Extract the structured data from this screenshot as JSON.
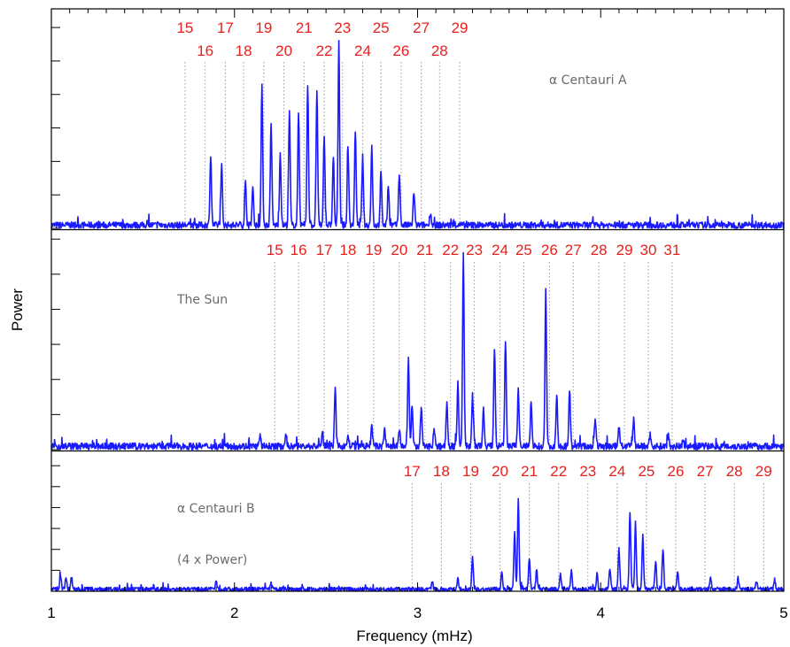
{
  "chart_data": {
    "type": "line",
    "xlabel": "Frequency (mHz)",
    "ylabel": "Power",
    "xlim": [
      1,
      5
    ],
    "x_tick_labels": [
      "1",
      "2",
      "3",
      "4",
      "5"
    ],
    "series_color": "#1a1aff",
    "order_label_color": "#e8201c",
    "panels": [
      {
        "name": "α Centauri A",
        "label_lines": [
          "α Centauri A"
        ],
        "orders": [
          {
            "n": "15",
            "f": 1.73
          },
          {
            "n": "16",
            "f": 1.84
          },
          {
            "n": "17",
            "f": 1.95
          },
          {
            "n": "18",
            "f": 2.05
          },
          {
            "n": "19",
            "f": 2.16
          },
          {
            "n": "20",
            "f": 2.27
          },
          {
            "n": "21",
            "f": 2.38
          },
          {
            "n": "22",
            "f": 2.49
          },
          {
            "n": "23",
            "f": 2.59
          },
          {
            "n": "24",
            "f": 2.7
          },
          {
            "n": "25",
            "f": 2.8
          },
          {
            "n": "26",
            "f": 2.91
          },
          {
            "n": "27",
            "f": 3.02
          },
          {
            "n": "28",
            "f": 3.12
          },
          {
            "n": "29",
            "f": 3.23
          }
        ],
        "peaks": [
          [
            1.87,
            0.38
          ],
          [
            1.93,
            0.32
          ],
          [
            2.06,
            0.23
          ],
          [
            2.1,
            0.2
          ],
          [
            2.15,
            0.75
          ],
          [
            2.2,
            0.56
          ],
          [
            2.25,
            0.39
          ],
          [
            2.3,
            0.62
          ],
          [
            2.35,
            0.62
          ],
          [
            2.4,
            0.77
          ],
          [
            2.45,
            0.74
          ],
          [
            2.49,
            0.48
          ],
          [
            2.54,
            0.38
          ],
          [
            2.57,
            1.0
          ],
          [
            2.62,
            0.42
          ],
          [
            2.66,
            0.52
          ],
          [
            2.7,
            0.37
          ],
          [
            2.75,
            0.43
          ],
          [
            2.8,
            0.28
          ],
          [
            2.84,
            0.22
          ],
          [
            2.9,
            0.28
          ],
          [
            2.98,
            0.18
          ],
          [
            3.07,
            0.07
          ]
        ]
      },
      {
        "name": "The Sun",
        "label_lines": [
          "The Sun"
        ],
        "orders": [
          {
            "n": "15",
            "f": 2.22
          },
          {
            "n": "16",
            "f": 2.35
          },
          {
            "n": "17",
            "f": 2.49
          },
          {
            "n": "18",
            "f": 2.62
          },
          {
            "n": "19",
            "f": 2.76
          },
          {
            "n": "20",
            "f": 2.9
          },
          {
            "n": "21",
            "f": 3.04
          },
          {
            "n": "22",
            "f": 3.18
          },
          {
            "n": "23",
            "f": 3.31
          },
          {
            "n": "24",
            "f": 3.45
          },
          {
            "n": "25",
            "f": 3.58
          },
          {
            "n": "26",
            "f": 3.72
          },
          {
            "n": "27",
            "f": 3.85
          },
          {
            "n": "28",
            "f": 3.99
          },
          {
            "n": "29",
            "f": 4.13
          },
          {
            "n": "30",
            "f": 4.26
          },
          {
            "n": "31",
            "f": 4.39
          }
        ],
        "peaks": [
          [
            2.14,
            0.05
          ],
          [
            2.28,
            0.06
          ],
          [
            2.48,
            0.08
          ],
          [
            2.55,
            0.3
          ],
          [
            2.62,
            0.06
          ],
          [
            2.75,
            0.11
          ],
          [
            2.82,
            0.09
          ],
          [
            2.9,
            0.09
          ],
          [
            2.95,
            0.45
          ],
          [
            2.97,
            0.21
          ],
          [
            3.02,
            0.2
          ],
          [
            3.09,
            0.1
          ],
          [
            3.16,
            0.22
          ],
          [
            3.22,
            0.34
          ],
          [
            3.25,
            1.0
          ],
          [
            3.3,
            0.27
          ],
          [
            3.36,
            0.19
          ],
          [
            3.42,
            0.5
          ],
          [
            3.48,
            0.54
          ],
          [
            3.55,
            0.3
          ],
          [
            3.62,
            0.23
          ],
          [
            3.7,
            0.81
          ],
          [
            3.76,
            0.27
          ],
          [
            3.83,
            0.29
          ],
          [
            3.97,
            0.15
          ],
          [
            4.1,
            0.11
          ],
          [
            4.18,
            0.14
          ],
          [
            4.27,
            0.06
          ],
          [
            4.37,
            0.06
          ],
          [
            4.45,
            0.04
          ]
        ]
      },
      {
        "name": "α Centauri B",
        "label_lines": [
          "α Centauri B",
          "(4 x Power)"
        ],
        "orders": [
          {
            "n": "17",
            "f": 2.97
          },
          {
            "n": "18",
            "f": 3.13
          },
          {
            "n": "19",
            "f": 3.29
          },
          {
            "n": "20",
            "f": 3.45
          },
          {
            "n": "21",
            "f": 3.61
          },
          {
            "n": "22",
            "f": 3.77
          },
          {
            "n": "23",
            "f": 3.93
          },
          {
            "n": "24",
            "f": 4.09
          },
          {
            "n": "25",
            "f": 4.25
          },
          {
            "n": "26",
            "f": 4.41
          },
          {
            "n": "27",
            "f": 4.57
          },
          {
            "n": "28",
            "f": 4.73
          },
          {
            "n": "29",
            "f": 4.89
          }
        ],
        "peaks": [
          [
            1.05,
            0.12
          ],
          [
            1.08,
            0.11
          ],
          [
            1.11,
            0.1
          ],
          [
            1.9,
            0.07
          ],
          [
            2.2,
            0.05
          ],
          [
            3.08,
            0.07
          ],
          [
            3.22,
            0.1
          ],
          [
            3.3,
            0.27
          ],
          [
            3.46,
            0.16
          ],
          [
            3.53,
            0.51
          ],
          [
            3.55,
            0.78
          ],
          [
            3.61,
            0.28
          ],
          [
            3.65,
            0.17
          ],
          [
            3.78,
            0.13
          ],
          [
            3.84,
            0.17
          ],
          [
            3.98,
            0.13
          ],
          [
            4.05,
            0.19
          ],
          [
            4.1,
            0.35
          ],
          [
            4.16,
            0.68
          ],
          [
            4.19,
            0.56
          ],
          [
            4.23,
            0.47
          ],
          [
            4.3,
            0.25
          ],
          [
            4.34,
            0.35
          ],
          [
            4.42,
            0.15
          ],
          [
            4.6,
            0.1
          ],
          [
            4.75,
            0.1
          ],
          [
            4.85,
            0.07
          ],
          [
            4.95,
            0.08
          ]
        ]
      }
    ]
  }
}
